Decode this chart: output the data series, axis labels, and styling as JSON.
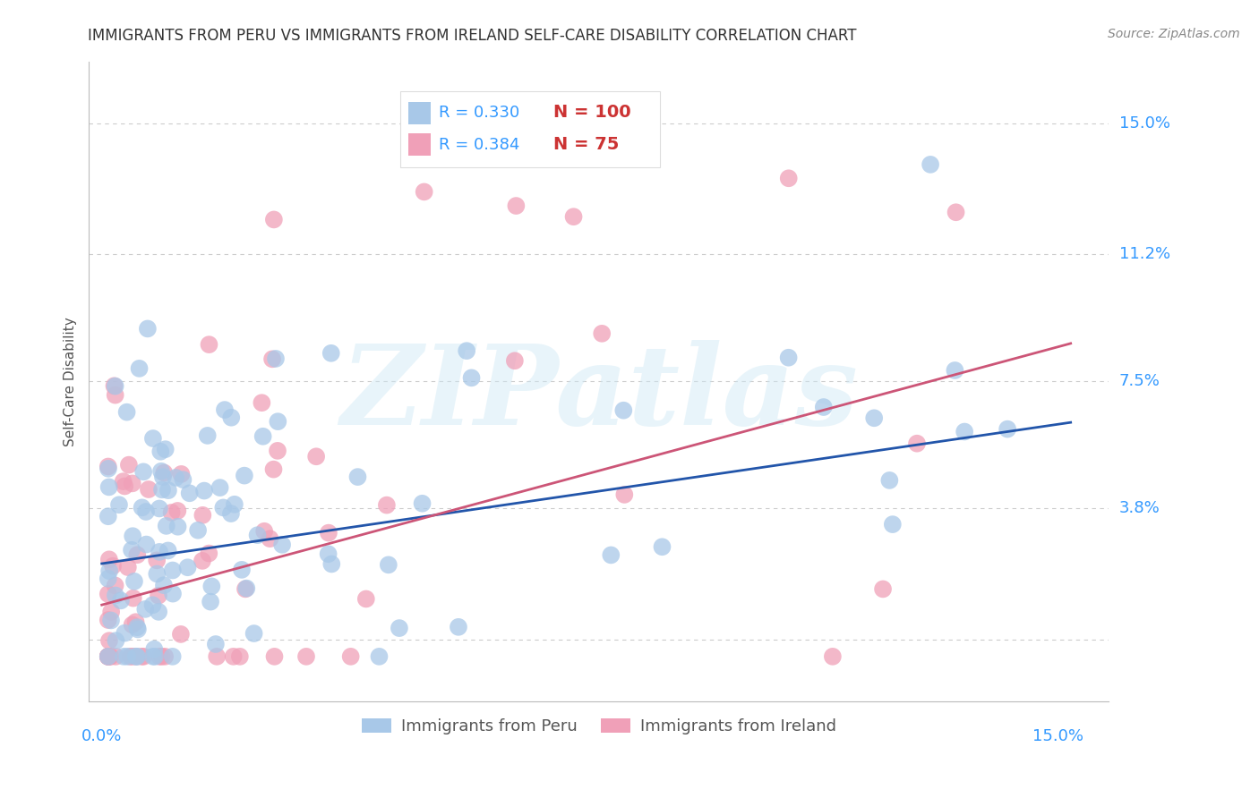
{
  "title": "IMMIGRANTS FROM PERU VS IMMIGRANTS FROM IRELAND SELF-CARE DISABILITY CORRELATION CHART",
  "source": "Source: ZipAtlas.com",
  "ylabel": "Self-Care Disability",
  "ytick_vals": [
    0.0,
    0.038,
    0.075,
    0.112,
    0.15
  ],
  "ytick_labels": [
    "",
    "3.8%",
    "7.5%",
    "11.2%",
    "15.0%"
  ],
  "xlim": [
    -0.002,
    0.158
  ],
  "ylim": [
    -0.018,
    0.168
  ],
  "peru_R": 0.33,
  "peru_N": 100,
  "ireland_R": 0.384,
  "ireland_N": 75,
  "peru_color": "#a8c8e8",
  "ireland_color": "#f0a0b8",
  "peru_line_color": "#2255aa",
  "ireland_line_color": "#cc5577",
  "legend_label_peru": "Immigrants from Peru",
  "legend_label_ireland": "Immigrants from Ireland",
  "title_fontsize": 12,
  "source_fontsize": 10,
  "watermark": "ZIPatlas",
  "background_color": "#ffffff",
  "grid_color": "#cccccc",
  "axis_label_color": "#3399ff",
  "tick_label_color": "#555555"
}
